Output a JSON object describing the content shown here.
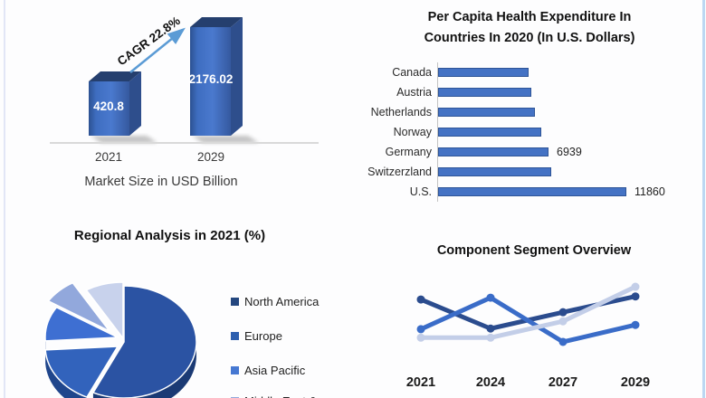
{
  "page": {
    "background": "#fdfdfe",
    "left_border_color": "#e2e6f6",
    "right_border_color": "#bcd7f2"
  },
  "chart_data": [
    {
      "id": "market-size",
      "type": "bar",
      "categories": [
        "2021",
        "2029"
      ],
      "values": [
        420.8,
        2176.02
      ],
      "data_labels": [
        "420.8",
        "2176.02"
      ],
      "annotation": "CAGR 22.8%",
      "xlabel": "Market Size in USD Billion",
      "bar_front_color": "#3E6BBE",
      "bar_top_color": "#253F6E",
      "arrow_color": "#5B9BD5"
    },
    {
      "id": "per-capita-health-expenditure",
      "type": "bar",
      "orientation": "horizontal",
      "title_lines": [
        "Per Capita Health Expenditure In",
        "Countries In 2020 (In U.S. Dollars)"
      ],
      "categories": [
        "Canada",
        "Austria",
        "Netherlands",
        "Norway",
        "Germany",
        "Switzerzland",
        "U.S."
      ],
      "values": [
        5700,
        5900,
        6100,
        6500,
        6939,
        7150,
        11860
      ],
      "data_labels": [
        "",
        "",
        "",
        "",
        "6939",
        "",
        "11860"
      ],
      "xlim": [
        0,
        11860
      ],
      "bar_color": "#4472C4",
      "bar_border_color": "#2F5597"
    },
    {
      "id": "regional-analysis",
      "type": "pie",
      "title": "Regional Analysis in 2021 (%)",
      "slices": [
        {
          "label": "North America",
          "pct": 57,
          "color": "#2B53A3",
          "side_color": "#1B3A74",
          "explode": [
            0,
            0
          ]
        },
        {
          "label": "Europe",
          "pct": 17,
          "color": "#3263BC",
          "side_color": "#20468C",
          "explode": [
            -7,
            5
          ]
        },
        {
          "label": "Asia Pacific",
          "pct": 10,
          "color": "#3E6FD2",
          "side_color": "#2A4E9C",
          "explode": [
            -7,
            -5
          ]
        },
        {
          "label": "Middle East &",
          "pct": 7.5,
          "color": "#92A8DC",
          "side_color": "#6D84BC",
          "explode": [
            -16,
            -12
          ]
        },
        {
          "label": "",
          "pct": 8.5,
          "color": "#C8D2EC",
          "side_color": "#97A5C9",
          "explode": [
            -1,
            -4
          ]
        }
      ],
      "legend": [
        {
          "label": "North America",
          "color": "#24477F"
        },
        {
          "label": "Europe",
          "color": "#2E5FAF"
        },
        {
          "label": "Asia Pacific",
          "color": "#4678D2"
        },
        {
          "label": "Middle East &",
          "color": "#92A8DC"
        }
      ]
    },
    {
      "id": "component-segment-overview",
      "type": "line",
      "title": "Component Segment Overview",
      "x": [
        "2021",
        "2024",
        "2027",
        "2029"
      ],
      "ylim": [
        0,
        100
      ],
      "grid": false,
      "legend_position": "none",
      "series": [
        {
          "name": "series-dark-blue",
          "color": "#2B4C8E",
          "values": [
            73,
            25,
            52,
            78
          ]
        },
        {
          "name": "series-bright-blue",
          "color": "#3A6CC8",
          "values": [
            24,
            76,
            3,
            31
          ]
        },
        {
          "name": "series-light-blue",
          "color": "#C3CEE8",
          "values": [
            10,
            10,
            37,
            94
          ]
        }
      ]
    }
  ]
}
